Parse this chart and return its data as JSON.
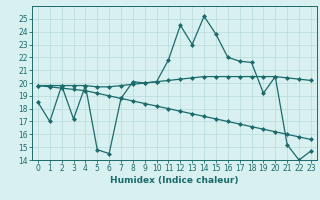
{
  "title": "",
  "xlabel": "Humidex (Indice chaleur)",
  "x": [
    0,
    1,
    2,
    3,
    4,
    5,
    6,
    7,
    8,
    9,
    10,
    11,
    12,
    13,
    14,
    15,
    16,
    17,
    18,
    19,
    20,
    21,
    22,
    23
  ],
  "series": [
    [
      18.5,
      17.0,
      19.8,
      17.2,
      19.8,
      14.8,
      14.5,
      18.8,
      20.1,
      20.0,
      20.1,
      21.8,
      24.5,
      23.0,
      25.2,
      23.8,
      22.0,
      21.7,
      21.6,
      19.2,
      20.5,
      15.2,
      14.0,
      14.7
    ],
    [
      19.8,
      19.8,
      19.8,
      19.8,
      19.8,
      19.7,
      19.7,
      19.8,
      19.9,
      20.0,
      20.1,
      20.2,
      20.3,
      20.4,
      20.5,
      20.5,
      20.5,
      20.5,
      20.5,
      20.5,
      20.5,
      20.4,
      20.3,
      20.2
    ],
    [
      19.8,
      19.7,
      19.6,
      19.5,
      19.4,
      19.2,
      19.0,
      18.8,
      18.6,
      18.4,
      18.2,
      18.0,
      17.8,
      17.6,
      17.4,
      17.2,
      17.0,
      16.8,
      16.6,
      16.4,
      16.2,
      16.0,
      15.8,
      15.6
    ]
  ],
  "line_color": "#1a6b6b",
  "bg_color": "#d8f0f0",
  "grid_color": "#b8dada",
  "ylim": [
    14,
    26
  ],
  "yticks": [
    14,
    15,
    16,
    17,
    18,
    19,
    20,
    21,
    22,
    23,
    24,
    25
  ],
  "xticks": [
    0,
    1,
    2,
    3,
    4,
    5,
    6,
    7,
    8,
    9,
    10,
    11,
    12,
    13,
    14,
    15,
    16,
    17,
    18,
    19,
    20,
    21,
    22,
    23
  ],
  "marker": "D",
  "markersize": 2.0,
  "linewidth": 0.9,
  "tick_labelsize": 5.5,
  "xlabel_fontsize": 6.5
}
